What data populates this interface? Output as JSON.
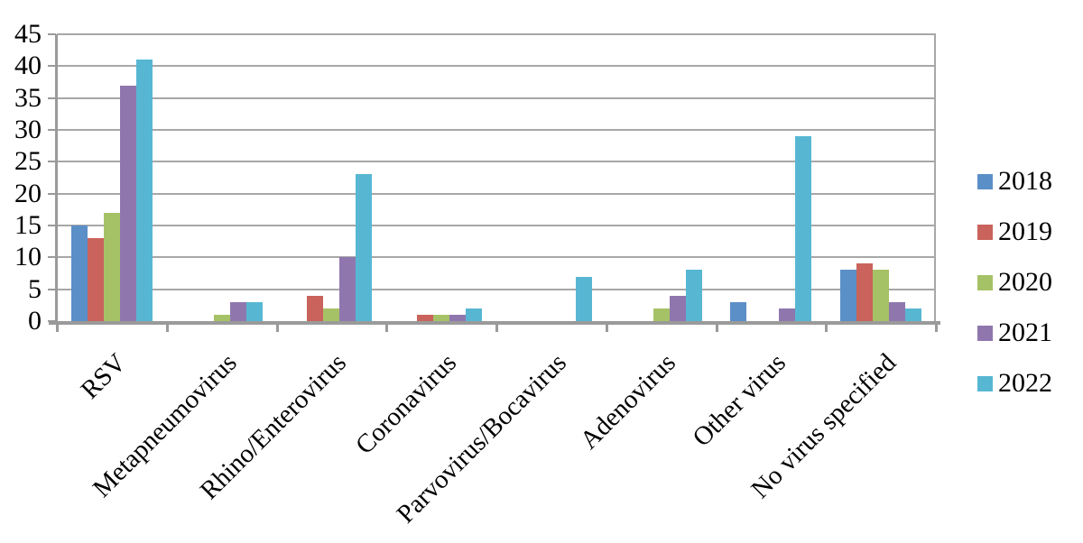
{
  "chart_data": {
    "type": "bar",
    "title": "",
    "xlabel": "",
    "ylabel": "",
    "categories": [
      "RSV",
      "Metapneumovirus",
      "Rhino/Enterovirus",
      "Coronavirus",
      "Parvovirus/Bocavirus",
      "Adenovirus",
      "Other virus",
      "No virus specified"
    ],
    "series": [
      {
        "name": "2018",
        "color": "#5b8fc7",
        "values": [
          15,
          0,
          0,
          0,
          0,
          0,
          3,
          8
        ]
      },
      {
        "name": "2019",
        "color": "#c9635c",
        "values": [
          13,
          0,
          4,
          1,
          0,
          0,
          0,
          9
        ]
      },
      {
        "name": "2020",
        "color": "#a6c266",
        "values": [
          17,
          1,
          2,
          1,
          0,
          2,
          0,
          8
        ]
      },
      {
        "name": "2021",
        "color": "#8f77ae",
        "values": [
          37,
          3,
          10,
          1,
          0,
          4,
          2,
          3
        ]
      },
      {
        "name": "2022",
        "color": "#57b7d3",
        "values": [
          41,
          3,
          23,
          2,
          7,
          8,
          29,
          2
        ]
      }
    ],
    "ylim": [
      0,
      45
    ],
    "yticks": [
      0,
      5,
      10,
      15,
      20,
      25,
      30,
      35,
      40,
      45
    ],
    "grid": true,
    "legend_position": "right"
  },
  "colors": {
    "gridline": "#a7a7a7",
    "axis": "#9a9a9a",
    "text": "#000000",
    "background": "#ffffff"
  }
}
